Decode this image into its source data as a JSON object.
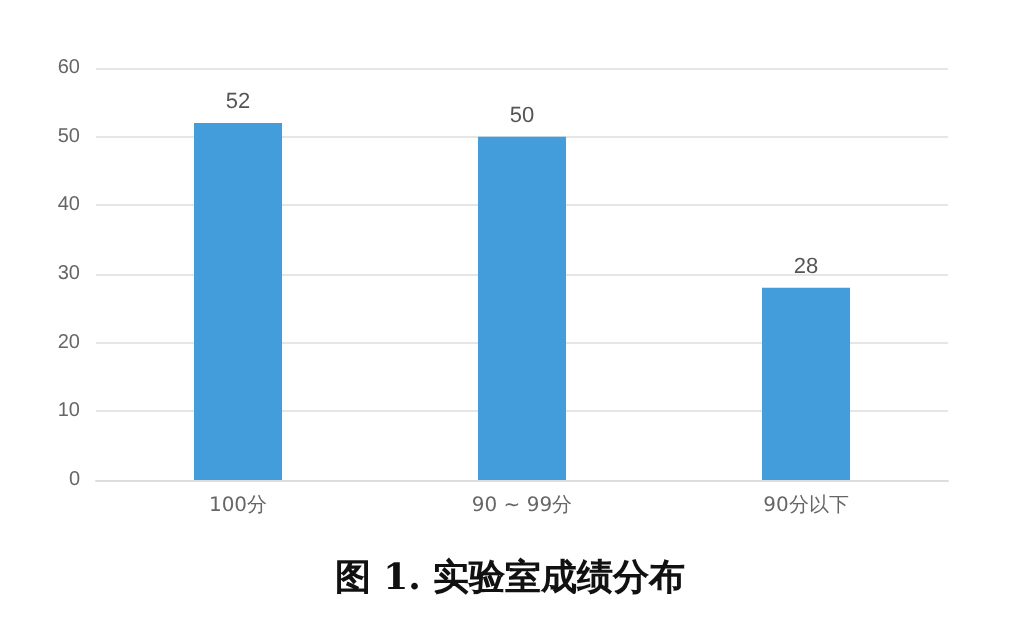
{
  "chart_data": {
    "type": "bar",
    "title": "图 1. 实验室成绩分布",
    "categories": [
      "100分",
      "90 ~ 99分",
      "90分以下"
    ],
    "values": [
      52,
      50,
      28
    ],
    "color": "#449ddb",
    "ylim": [
      0,
      60
    ],
    "yticks": [
      0,
      10,
      20,
      30,
      40,
      50,
      60
    ],
    "grid": "y",
    "data_labels": true
  }
}
